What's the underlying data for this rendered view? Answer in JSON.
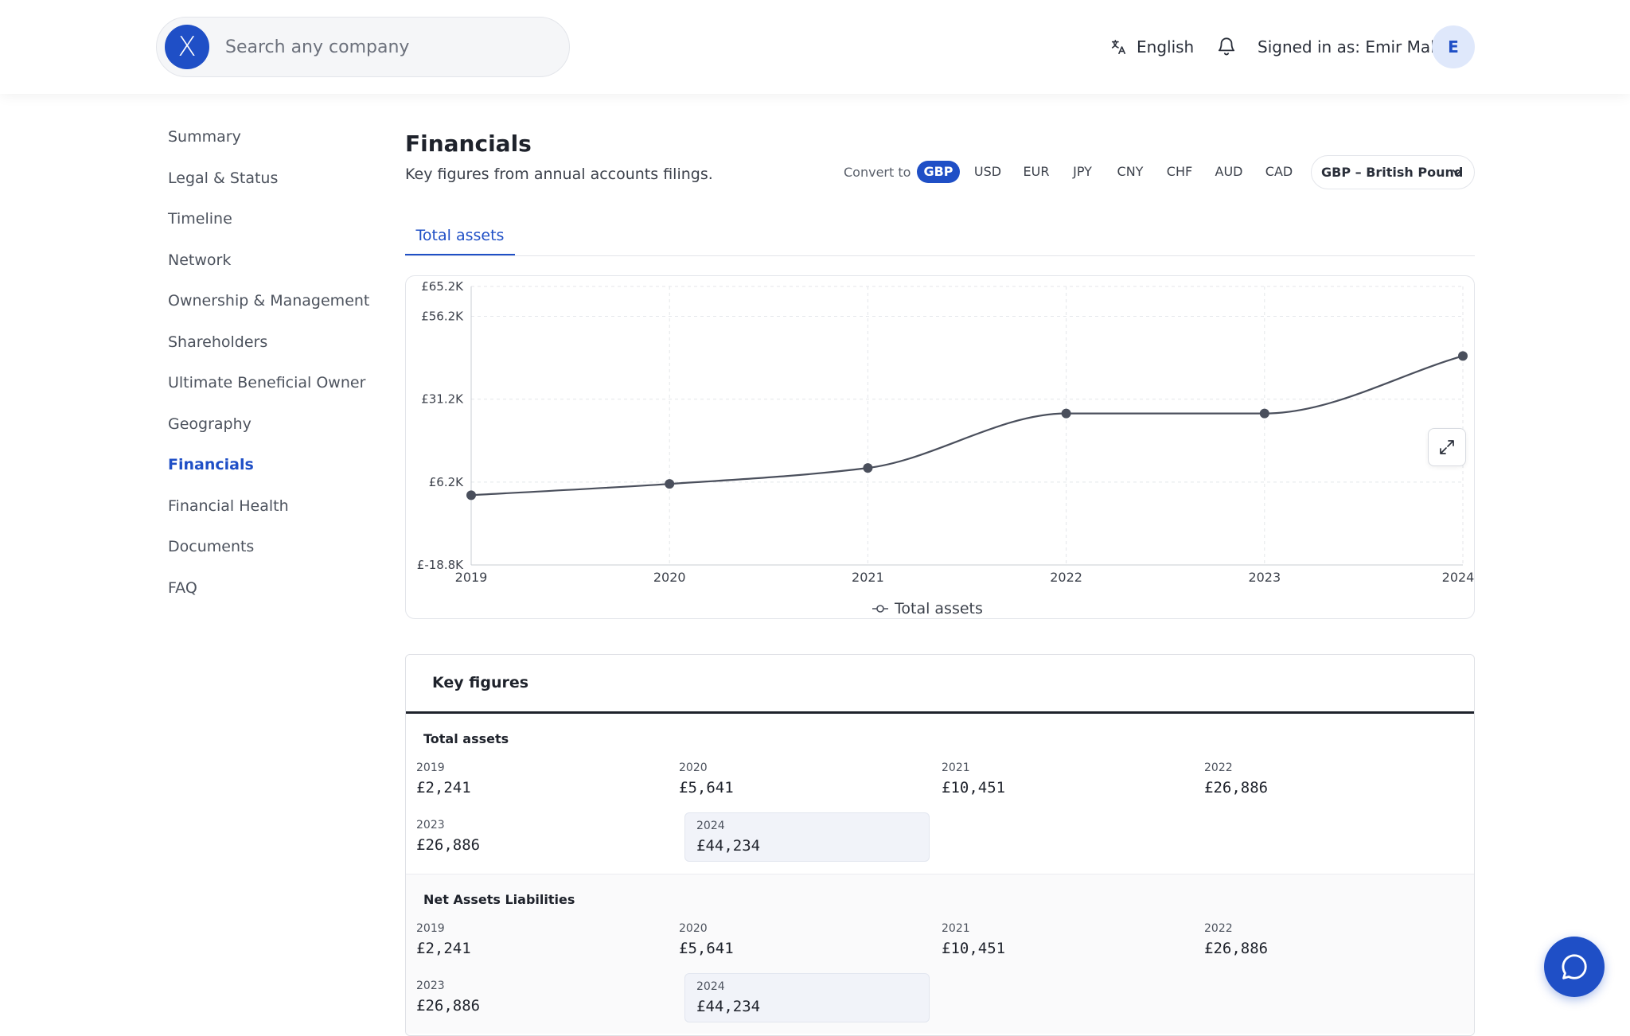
{
  "header": {
    "logo_letter": "X",
    "search_placeholder": "Search any company",
    "language": "English",
    "signed_in": "Signed in as: Emir Malik",
    "avatar_letter": "E"
  },
  "sidebar": {
    "items": [
      {
        "label": "Summary"
      },
      {
        "label": "Legal & Status"
      },
      {
        "label": "Timeline"
      },
      {
        "label": "Network"
      },
      {
        "label": "Ownership & Management"
      },
      {
        "label": "Shareholders"
      },
      {
        "label": "Ultimate Beneficial Owner"
      },
      {
        "label": "Geography"
      },
      {
        "label": "Financials",
        "active": true
      },
      {
        "label": "Financial Health"
      },
      {
        "label": "Documents"
      },
      {
        "label": "FAQ"
      }
    ]
  },
  "main": {
    "title": "Financials",
    "subtitle": "Key figures from annual accounts filings.",
    "convert_label": "Convert to",
    "currencies": [
      "GBP",
      "USD",
      "EUR",
      "JPY",
      "CNY",
      "CHF",
      "AUD",
      "CAD"
    ],
    "active_currency": "GBP",
    "currency_select": "GBP – British Pound",
    "tab": "Total assets"
  },
  "chart_data": {
    "type": "line",
    "x": [
      "2019",
      "2020",
      "2021",
      "2022",
      "2023",
      "2024"
    ],
    "series": [
      {
        "name": "Total assets",
        "values": [
          2241,
          5641,
          10451,
          26886,
          26886,
          44234
        ]
      }
    ],
    "y_ticks": [
      "£65.2K",
      "£56.2K",
      "£31.2K",
      "£6.2K",
      "£-18.8K"
    ],
    "y_tick_values": [
      65200,
      56200,
      31200,
      6200,
      -18800
    ],
    "ylim": [
      -18800,
      65200
    ],
    "grid": true,
    "legend": "bottom-center",
    "line_color": "#4a4f5c"
  },
  "key_figures": {
    "title": "Key figures",
    "groups": [
      {
        "title": "Total assets",
        "cells": [
          {
            "year": "2019",
            "value": "£2,241"
          },
          {
            "year": "2020",
            "value": "£5,641"
          },
          {
            "year": "2021",
            "value": "£10,451"
          },
          {
            "year": "2022",
            "value": "£26,886"
          },
          {
            "year": "2023",
            "value": "£26,886"
          },
          {
            "year": "2024",
            "value": "£44,234"
          }
        ]
      },
      {
        "title": "Net Assets Liabilities",
        "cells": [
          {
            "year": "2019",
            "value": "£2,241"
          },
          {
            "year": "2020",
            "value": "£5,641"
          },
          {
            "year": "2021",
            "value": "£10,451"
          },
          {
            "year": "2022",
            "value": "£26,886"
          },
          {
            "year": "2023",
            "value": "£26,886"
          },
          {
            "year": "2024",
            "value": "£44,234"
          }
        ]
      }
    ]
  },
  "colors": {
    "accent": "#1f4fc6"
  }
}
